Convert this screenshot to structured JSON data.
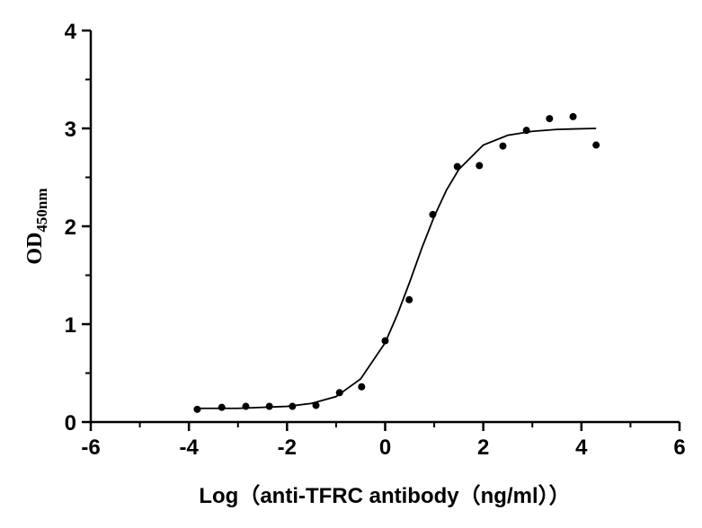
{
  "chart_data": {
    "type": "scatter",
    "x_label": "Log（anti-TFRC antibody（ng/ml））",
    "y_label": "OD",
    "y_label_sub": "450nm",
    "x": [
      -3.83,
      -3.33,
      -2.84,
      -2.36,
      -1.89,
      -1.41,
      -0.93,
      -0.48,
      0,
      0.49,
      0.97,
      1.47,
      1.92,
      2.4,
      2.88,
      3.35,
      3.83,
      4.3
    ],
    "values": [
      0.13,
      0.15,
      0.16,
      0.16,
      0.16,
      0.17,
      0.3,
      0.36,
      0.83,
      1.25,
      2.12,
      2.61,
      2.62,
      2.82,
      2.98,
      3.1,
      3.12,
      2.83
    ],
    "color": "#000000",
    "fit": {
      "x": [
        -3.8,
        -3,
        -2.5,
        -2,
        -1.5,
        -1,
        -0.5,
        0,
        0.25,
        0.5,
        0.75,
        1,
        1.25,
        1.5,
        2,
        2.5,
        3,
        3.5,
        4.3
      ],
      "values": [
        0.14,
        0.14,
        0.15,
        0.16,
        0.19,
        0.26,
        0.44,
        0.81,
        1.1,
        1.43,
        1.78,
        2.1,
        2.37,
        2.58,
        2.83,
        2.93,
        2.97,
        2.99,
        3.0
      ]
    },
    "xlim": [
      -6,
      6
    ],
    "xticks": [
      -6,
      -4,
      -2,
      0,
      2,
      4,
      6
    ],
    "xminorticks": [
      -5,
      -3,
      -1,
      1,
      3,
      5
    ],
    "ylim": [
      0,
      4
    ],
    "yticks": [
      0,
      1,
      2,
      3,
      4
    ],
    "yminorticks": [
      0.5,
      1.5,
      2.5,
      3.5
    ]
  }
}
